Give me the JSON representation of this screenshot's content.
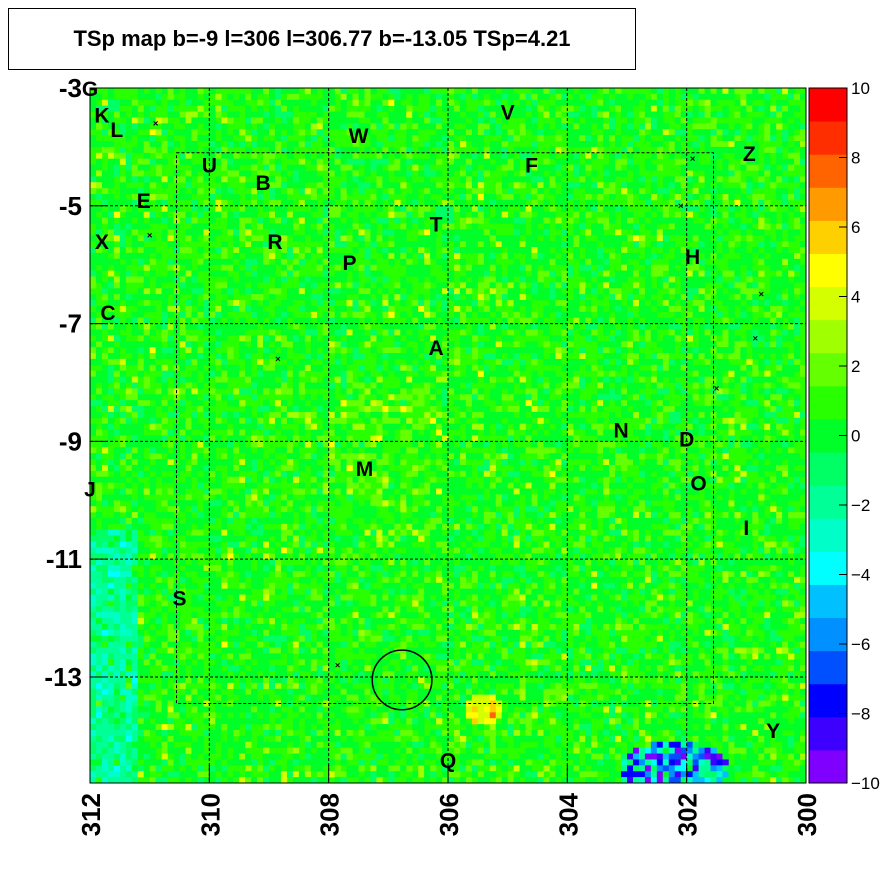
{
  "title": "TSp map b=-9 l=306 l=306.77 b=-13.05 TSp=4.21",
  "chart_data": {
    "type": "heatmap",
    "title": "TSp map b=-9 l=306 l=306.77 b=-13.05 TSp=4.21",
    "x_axis": {
      "range": [
        312,
        300
      ],
      "reversed": true,
      "tick_labels": [
        "312",
        "310",
        "308",
        "306",
        "304",
        "302",
        "300"
      ]
    },
    "y_axis": {
      "range": [
        -14.8,
        -3
      ],
      "tick_labels": [
        "-3",
        "-5",
        "-7",
        "-9",
        "-11",
        "-13"
      ]
    },
    "color_scale": {
      "range": [
        -10,
        10
      ],
      "tick_labels": [
        "10",
        "8",
        "6",
        "4",
        "2",
        "0",
        "−2",
        "−4",
        "−6",
        "−8",
        "−10"
      ],
      "colors": [
        "#7f00ff",
        "#3d00ff",
        "#0000ff",
        "#0050ff",
        "#0090ff",
        "#00c0ff",
        "#00ffff",
        "#00ffc8",
        "#00ff96",
        "#00ff64",
        "#00ff28",
        "#28ff00",
        "#64ff00",
        "#a0ff00",
        "#d4ff00",
        "#ffff00",
        "#ffd000",
        "#ff9a00",
        "#ff6400",
        "#ff2e00",
        "#ff0000"
      ]
    },
    "typical_value": 0.5,
    "grid": true,
    "sources": [
      {
        "label": "G",
        "l": 312.0,
        "b": -3.0
      },
      {
        "label": "K",
        "l": 311.8,
        "b": -3.45
      },
      {
        "label": "L",
        "l": 311.55,
        "b": -3.7
      },
      {
        "label": "U",
        "l": 310.0,
        "b": -4.3
      },
      {
        "label": "B",
        "l": 309.1,
        "b": -4.6
      },
      {
        "label": "W",
        "l": 307.5,
        "b": -3.8
      },
      {
        "label": "V",
        "l": 305.0,
        "b": -3.4
      },
      {
        "label": "F",
        "l": 304.6,
        "b": -4.3
      },
      {
        "label": "Z",
        "l": 300.95,
        "b": -4.1
      },
      {
        "label": "E",
        "l": 311.1,
        "b": -4.9
      },
      {
        "label": "X",
        "l": 311.8,
        "b": -5.6
      },
      {
        "label": "R",
        "l": 308.9,
        "b": -5.6
      },
      {
        "label": "T",
        "l": 306.2,
        "b": -5.3
      },
      {
        "label": "P",
        "l": 307.65,
        "b": -5.95
      },
      {
        "label": "H",
        "l": 301.9,
        "b": -5.85
      },
      {
        "label": "C",
        "l": 311.7,
        "b": -6.8
      },
      {
        "label": "A",
        "l": 306.2,
        "b": -7.4
      },
      {
        "label": "N",
        "l": 303.1,
        "b": -8.8
      },
      {
        "label": "D",
        "l": 302.0,
        "b": -8.95
      },
      {
        "label": "M",
        "l": 307.4,
        "b": -9.45
      },
      {
        "label": "O",
        "l": 301.8,
        "b": -9.7
      },
      {
        "label": "J",
        "l": 312.0,
        "b": -9.8
      },
      {
        "label": "I",
        "l": 301.0,
        "b": -10.45
      },
      {
        "label": "S",
        "l": 310.5,
        "b": -11.65
      },
      {
        "label": "Y",
        "l": 300.55,
        "b": -13.9
      },
      {
        "label": "Q",
        "l": 306.0,
        "b": -14.4
      }
    ],
    "markers": [
      {
        "l": 310.9,
        "b": -3.6
      },
      {
        "l": 311.0,
        "b": -5.5
      },
      {
        "l": 308.85,
        "b": -7.6
      },
      {
        "l": 301.9,
        "b": -4.2
      },
      {
        "l": 302.1,
        "b": -5.0
      },
      {
        "l": 300.75,
        "b": -6.5
      },
      {
        "l": 300.85,
        "b": -7.25
      },
      {
        "l": 301.5,
        "b": -8.1
      },
      {
        "l": 307.85,
        "b": -12.8
      }
    ],
    "circle": {
      "l": 306.77,
      "b": -13.05,
      "r": 0.5
    }
  }
}
